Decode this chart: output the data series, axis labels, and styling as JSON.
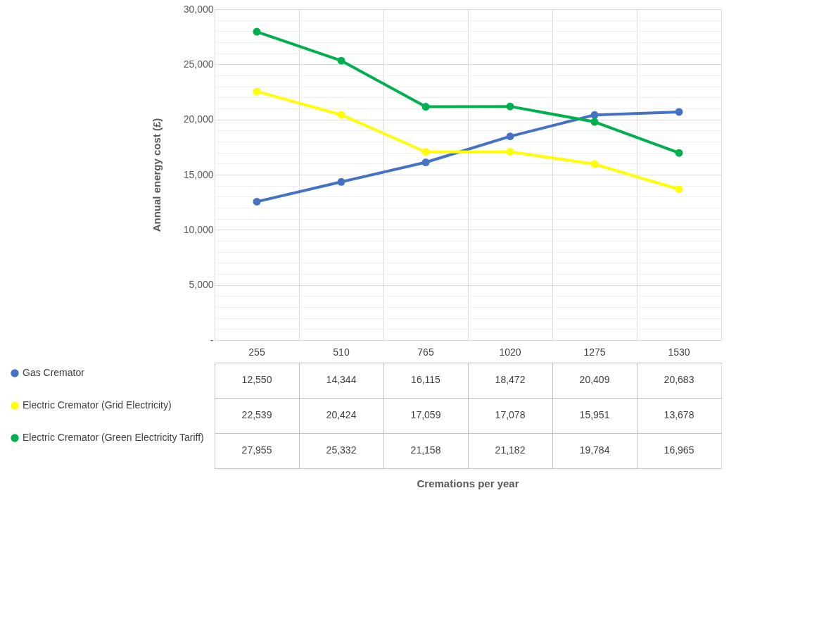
{
  "chart_data": {
    "type": "line",
    "annotations": [
      "Cremations per year"
    ],
    "ylabel": "Annual energy cost (£)",
    "categories": [
      "255",
      "510",
      "765",
      "1020",
      "1275",
      "1530"
    ],
    "series": [
      {
        "name": "Gas Cremator",
        "color": "#4472c4",
        "values": [
          12550,
          14344,
          16115,
          18472,
          20409,
          20683
        ],
        "value_labels": [
          "12,550",
          "14,344",
          "16,115",
          "18,472",
          "20,409",
          "20,683"
        ]
      },
      {
        "name": "Electric Cremator (Grid Electricity)",
        "color": "#ffff00",
        "values": [
          22539,
          20424,
          17059,
          17078,
          15951,
          13678
        ],
        "value_labels": [
          "22,539",
          "20,424",
          "17,059",
          "17,078",
          "15,951",
          "13,678"
        ]
      },
      {
        "name": "Electric Cremator (Green Electricity Tariff)",
        "color": "#00b050",
        "values": [
          27955,
          25332,
          21158,
          21182,
          19784,
          16965
        ],
        "value_labels": [
          "27,955",
          "25,332",
          "21,158",
          "21,182",
          "19,784",
          "16,965"
        ]
      }
    ],
    "ylim": [
      0,
      30000
    ],
    "yticks": [
      {
        "value": 0,
        "label": "-"
      },
      {
        "value": 1000,
        "label": null
      },
      {
        "value": 2000,
        "label": null
      },
      {
        "value": 3000,
        "label": null
      },
      {
        "value": 4000,
        "label": null
      },
      {
        "value": 5000,
        "label": "5,000"
      },
      {
        "value": 6000,
        "label": null
      },
      {
        "value": 7000,
        "label": null
      },
      {
        "value": 8000,
        "label": null
      },
      {
        "value": 9000,
        "label": null
      },
      {
        "value": 10000,
        "label": "10,000"
      },
      {
        "value": 11000,
        "label": null
      },
      {
        "value": 12000,
        "label": null
      },
      {
        "value": 13000,
        "label": null
      },
      {
        "value": 14000,
        "label": null
      },
      {
        "value": 15000,
        "label": "15,000"
      },
      {
        "value": 16000,
        "label": null
      },
      {
        "value": 17000,
        "label": null
      },
      {
        "value": 18000,
        "label": null
      },
      {
        "value": 19000,
        "label": null
      },
      {
        "value": 20000,
        "label": "20,000"
      },
      {
        "value": 21000,
        "label": null
      },
      {
        "value": 22000,
        "label": null
      },
      {
        "value": 23000,
        "label": null
      },
      {
        "value": 24000,
        "label": null
      },
      {
        "value": 25000,
        "label": "25,000"
      },
      {
        "value": 26000,
        "label": null
      },
      {
        "value": 27000,
        "label": null
      },
      {
        "value": 28000,
        "label": null
      },
      {
        "value": 29000,
        "label": null
      },
      {
        "value": 30000,
        "label": "30,000"
      }
    ],
    "grid": true,
    "legend": "bottom",
    "marker": "circle",
    "line_style": "solid"
  }
}
